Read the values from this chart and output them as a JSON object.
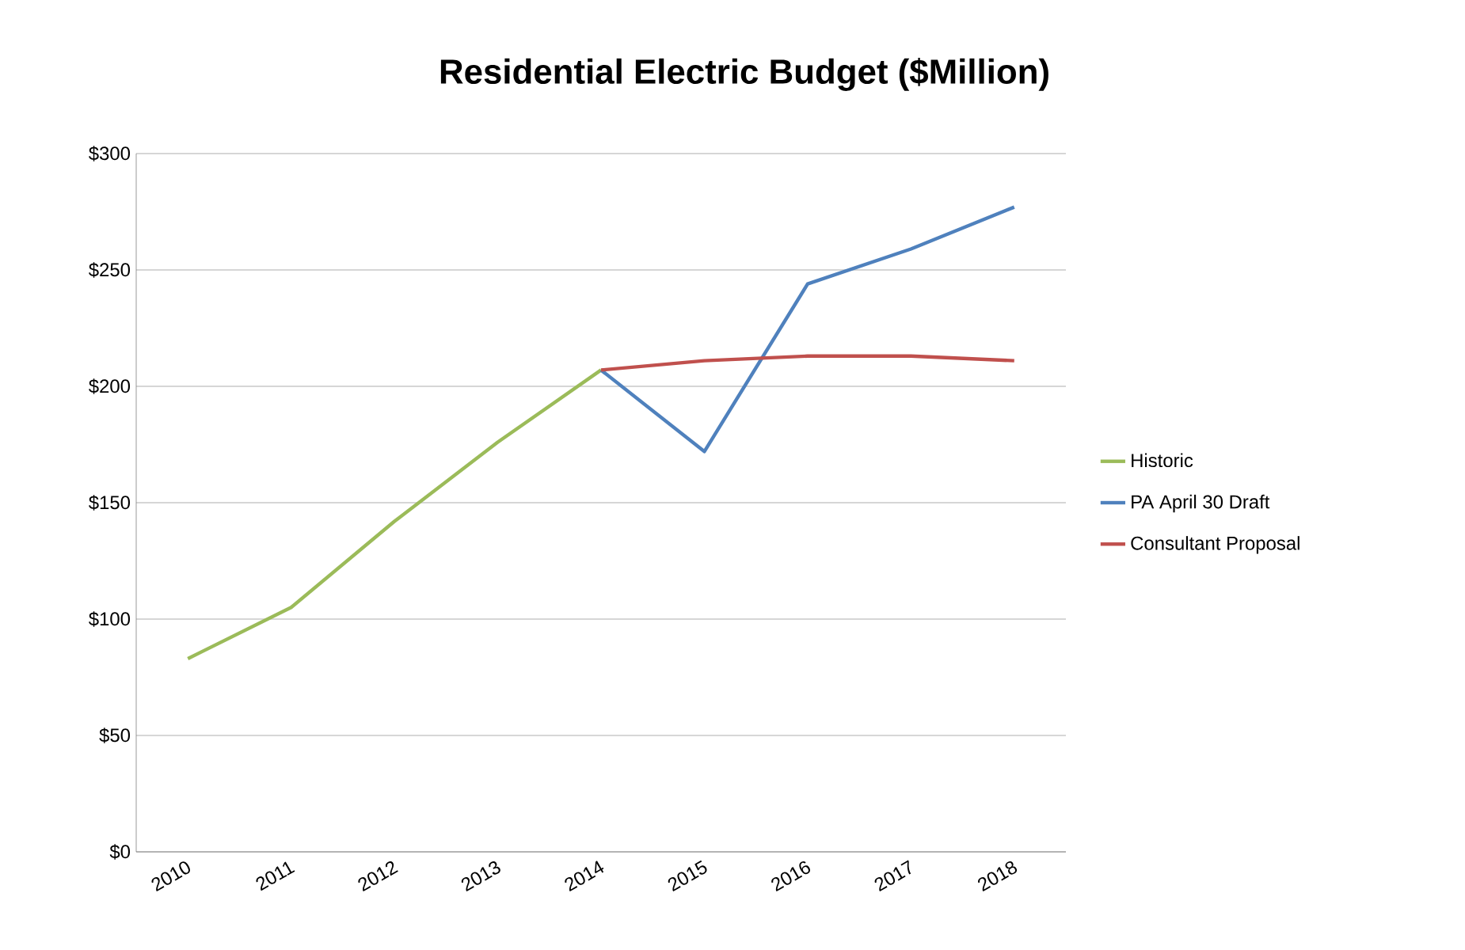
{
  "chart_data": {
    "type": "line",
    "title": "Residential Electric Budget ($Million)",
    "categories": [
      "2010",
      "2011",
      "2012",
      "2013",
      "2014",
      "2015",
      "2016",
      "2017",
      "2018"
    ],
    "series": [
      {
        "name": "Historic",
        "color": "#9bbb59",
        "values": [
          83,
          105,
          142,
          176,
          207,
          null,
          null,
          null,
          null
        ]
      },
      {
        "name": "PA April 30 Draft",
        "color": "#4f81bd",
        "values": [
          null,
          null,
          null,
          null,
          207,
          172,
          244,
          259,
          277
        ]
      },
      {
        "name": "Consultant Proposal",
        "color": "#c0504d",
        "values": [
          null,
          null,
          null,
          null,
          207,
          211,
          213,
          213,
          211
        ]
      }
    ],
    "ylim": [
      0,
      300
    ],
    "yticks": [
      {
        "value": 0,
        "label": "$0"
      },
      {
        "value": 50,
        "label": "$50"
      },
      {
        "value": 100,
        "label": "$100"
      },
      {
        "value": 150,
        "label": "$150"
      },
      {
        "value": 200,
        "label": "$200"
      },
      {
        "value": 250,
        "label": "$250"
      },
      {
        "value": 300,
        "label": "$300"
      }
    ],
    "grid": "y",
    "legend": "right",
    "marker": "none",
    "line_style": "solid"
  }
}
